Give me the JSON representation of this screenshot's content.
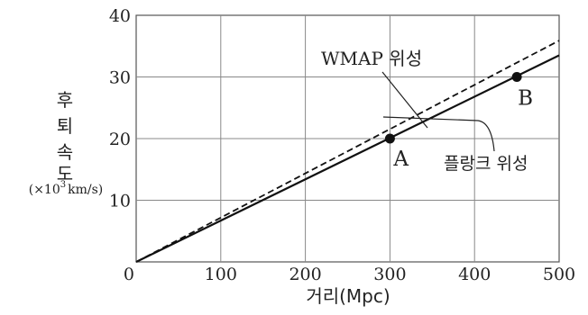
{
  "chart_data": {
    "type": "line",
    "title": "",
    "xlabel": "거리(Mpc)",
    "ylabel": "후퇴 속도",
    "ylabel_unit_prefix": "(×10",
    "ylabel_unit_exp": "3",
    "ylabel_unit_suffix": "km/s)",
    "xlim": [
      0,
      500
    ],
    "ylim": [
      0,
      40
    ],
    "x_ticks": [
      0,
      100,
      200,
      300,
      400,
      500
    ],
    "y_ticks": [
      0,
      10,
      20,
      30,
      40
    ],
    "grid": true,
    "series": [
      {
        "name": "WMAP 위성",
        "style": "dashed",
        "color": "#111111",
        "x": [
          0,
          500
        ],
        "y": [
          0,
          35.9
        ]
      },
      {
        "name": "플랑크 위성",
        "style": "solid",
        "color": "#111111",
        "x": [
          0,
          500
        ],
        "y": [
          0,
          33.5
        ]
      }
    ],
    "points": [
      {
        "label": "A",
        "x": 300,
        "y": 20
      },
      {
        "label": "B",
        "x": 450,
        "y": 30
      }
    ]
  }
}
